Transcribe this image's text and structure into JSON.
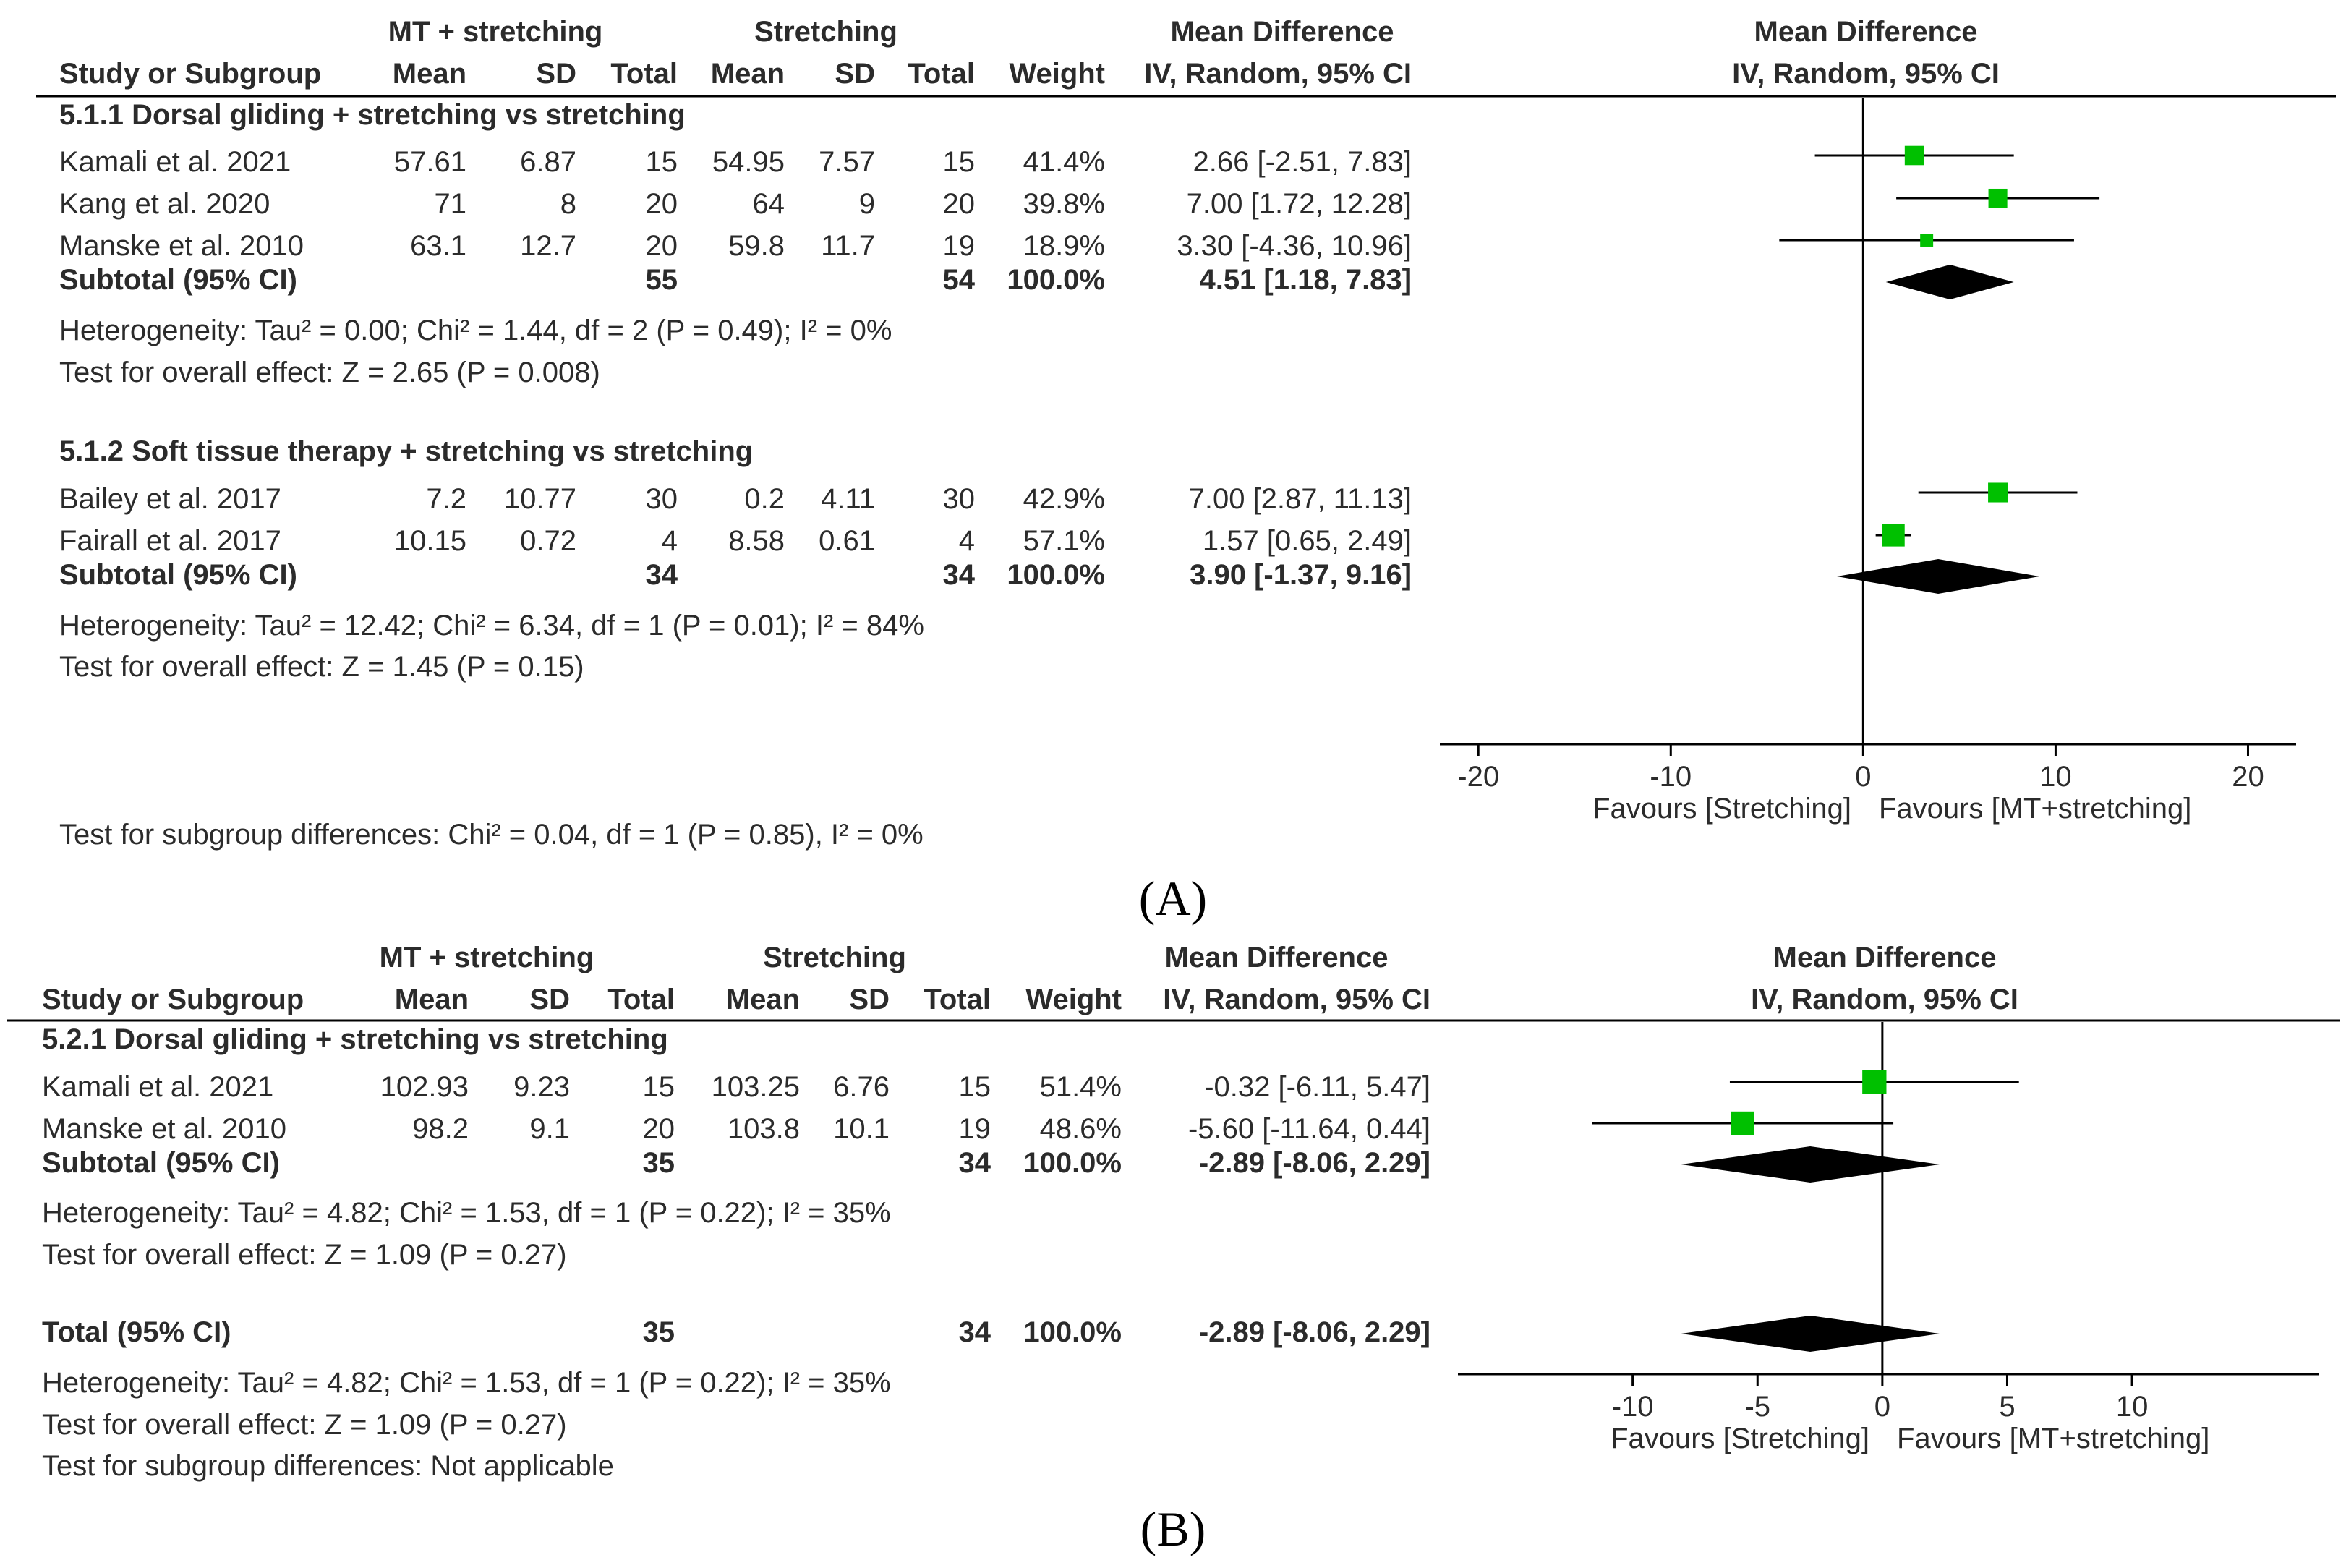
{
  "colors": {
    "marker": "#00c000",
    "diamond": "#000000",
    "line": "#000000",
    "text": "#2b2b2b"
  },
  "chart_data": [
    {
      "type": "forest",
      "panel_label": "(A)",
      "headers": {
        "group1": "MT + stretching",
        "group2": "Stretching",
        "md_top": "Mean Difference",
        "md_sub": "IV, Random, 95% CI",
        "plot_top": "Mean Difference",
        "plot_sub": "IV, Random, 95% CI",
        "study": "Study or Subgroup",
        "mean1": "Mean",
        "sd1": "SD",
        "total1": "Total",
        "mean2": "Mean",
        "sd2": "SD",
        "total2": "Total",
        "weight": "Weight"
      },
      "subgroups": [
        {
          "title": "5.1.1 Dorsal gliding + stretching vs stretching",
          "studies": [
            {
              "name": "Kamali et al. 2021",
              "mean1": "57.61",
              "sd1": "6.87",
              "n1": "15",
              "mean2": "54.95",
              "sd2": "7.57",
              "n2": "15",
              "weight": "41.4%",
              "ci_text": "2.66 [-2.51, 7.83]",
              "est": 2.66,
              "lo": -2.51,
              "hi": 7.83,
              "w": 41.4
            },
            {
              "name": "Kang et al. 2020",
              "mean1": "71",
              "sd1": "8",
              "n1": "20",
              "mean2": "64",
              "sd2": "9",
              "n2": "20",
              "weight": "39.8%",
              "ci_text": "7.00 [1.72, 12.28]",
              "est": 7.0,
              "lo": 1.72,
              "hi": 12.28,
              "w": 39.8
            },
            {
              "name": "Manske et al. 2010",
              "mean1": "63.1",
              "sd1": "12.7",
              "n1": "20",
              "mean2": "59.8",
              "sd2": "11.7",
              "n2": "19",
              "weight": "18.9%",
              "ci_text": "3.30 [-4.36, 10.96]",
              "est": 3.3,
              "lo": -4.36,
              "hi": 10.96,
              "w": 18.9
            }
          ],
          "subtotal": {
            "label": "Subtotal (95% CI)",
            "n1": "55",
            "n2": "54",
            "weight": "100.0%",
            "ci_text": "4.51 [1.18, 7.83]",
            "est": 4.51,
            "lo": 1.18,
            "hi": 7.83
          },
          "heterogeneity": "Heterogeneity: Tau² = 0.00; Chi² = 1.44, df = 2 (P = 0.49); I² = 0%",
          "overall": "Test for overall effect: Z = 2.65 (P = 0.008)"
        },
        {
          "title": "5.1.2 Soft tissue therapy + stretching vs stretching",
          "studies": [
            {
              "name": "Bailey et al. 2017",
              "mean1": "7.2",
              "sd1": "10.77",
              "n1": "30",
              "mean2": "0.2",
              "sd2": "4.11",
              "n2": "30",
              "weight": "42.9%",
              "ci_text": "7.00 [2.87, 11.13]",
              "est": 7.0,
              "lo": 2.87,
              "hi": 11.13,
              "w": 42.9
            },
            {
              "name": "Fairall et al. 2017",
              "mean1": "10.15",
              "sd1": "0.72",
              "n1": "4",
              "mean2": "8.58",
              "sd2": "0.61",
              "n2": "4",
              "weight": "57.1%",
              "ci_text": "1.57 [0.65, 2.49]",
              "est": 1.57,
              "lo": 0.65,
              "hi": 2.49,
              "w": 57.1
            }
          ],
          "subtotal": {
            "label": "Subtotal (95% CI)",
            "n1": "34",
            "n2": "34",
            "weight": "100.0%",
            "ci_text": "3.90 [-1.37, 9.16]",
            "est": 3.9,
            "lo": -1.37,
            "hi": 9.16
          },
          "heterogeneity": "Heterogeneity: Tau² = 12.42; Chi² = 6.34, df = 1 (P = 0.01); I² = 84%",
          "overall": "Test for overall effect: Z = 1.45 (P = 0.15)"
        }
      ],
      "subgroup_diff": "Test for subgroup differences: Chi² = 0.04, df = 1 (P = 0.85), I² = 0%",
      "axis": {
        "min": -22,
        "max": 22.5,
        "ticks": [
          -20,
          -10,
          0,
          10,
          20
        ],
        "tick_labels": [
          "-20",
          "-10",
          "0",
          "10",
          "20"
        ]
      },
      "favours_left": "Favours [Stretching]",
      "favours_right": "Favours [MT+stretching]"
    },
    {
      "type": "forest",
      "panel_label": "(B)",
      "headers": {
        "group1": "MT + stretching",
        "group2": "Stretching",
        "md_top": "Mean Difference",
        "md_sub": "IV, Random, 95% CI",
        "plot_top": "Mean Difference",
        "plot_sub": "IV, Random, 95% CI",
        "study": "Study or Subgroup",
        "mean1": "Mean",
        "sd1": "SD",
        "total1": "Total",
        "mean2": "Mean",
        "sd2": "SD",
        "total2": "Total",
        "weight": "Weight"
      },
      "subgroups": [
        {
          "title": "5.2.1 Dorsal gliding + stretching vs stretching",
          "studies": [
            {
              "name": "Kamali et al. 2021",
              "mean1": "102.93",
              "sd1": "9.23",
              "n1": "15",
              "mean2": "103.25",
              "sd2": "6.76",
              "n2": "15",
              "weight": "51.4%",
              "ci_text": "-0.32 [-6.11, 5.47]",
              "est": -0.32,
              "lo": -6.11,
              "hi": 5.47,
              "w": 51.4
            },
            {
              "name": "Manske et al. 2010",
              "mean1": "98.2",
              "sd1": "9.1",
              "n1": "20",
              "mean2": "103.8",
              "sd2": "10.1",
              "n2": "19",
              "weight": "48.6%",
              "ci_text": "-5.60 [-11.64, 0.44]",
              "est": -5.6,
              "lo": -11.64,
              "hi": 0.44,
              "w": 48.6
            }
          ],
          "subtotal": {
            "label": "Subtotal (95% CI)",
            "n1": "35",
            "n2": "34",
            "weight": "100.0%",
            "ci_text": "-2.89 [-8.06, 2.29]",
            "est": -2.89,
            "lo": -8.06,
            "hi": 2.29
          },
          "heterogeneity": "Heterogeneity: Tau² = 4.82; Chi² = 1.53, df = 1 (P = 0.22); I² = 35%",
          "overall": "Test for overall effect: Z = 1.09 (P = 0.27)"
        }
      ],
      "total": {
        "label": "Total (95% CI)",
        "n1": "35",
        "n2": "34",
        "weight": "100.0%",
        "ci_text": "-2.89 [-8.06, 2.29]",
        "est": -2.89,
        "lo": -8.06,
        "hi": 2.29
      },
      "total_heterogeneity": "Heterogeneity: Tau² = 4.82; Chi² = 1.53, df = 1 (P = 0.22); I² = 35%",
      "total_overall": "Test for overall effect: Z = 1.09 (P = 0.27)",
      "subgroup_diff": "Test for subgroup differences: Not applicable",
      "axis": {
        "min": -17,
        "max": 17.5,
        "ticks": [
          -10,
          -5,
          0,
          5,
          10
        ],
        "tick_labels": [
          "-10",
          "-5",
          "0",
          "5",
          "10"
        ]
      },
      "favours_left": "Favours [Stretching]",
      "favours_right": "Favours [MT+stretching]"
    }
  ]
}
